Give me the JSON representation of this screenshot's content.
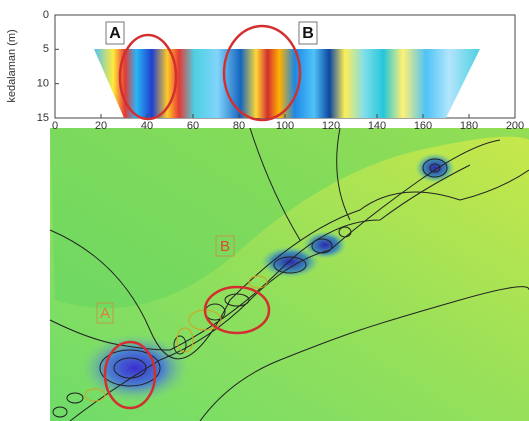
{
  "chart_data": {
    "type": "heatmap",
    "ylabel": "kedalaman (m)",
    "xlim": [
      0,
      200
    ],
    "ylim": [
      15,
      0
    ],
    "xticks": [
      0,
      20,
      40,
      60,
      80,
      100,
      120,
      140,
      160,
      180,
      200
    ],
    "yticks": [
      0,
      5,
      10,
      15
    ],
    "annotations": [
      "A",
      "B"
    ]
  },
  "map": {
    "labels": [
      "A",
      "B"
    ]
  }
}
